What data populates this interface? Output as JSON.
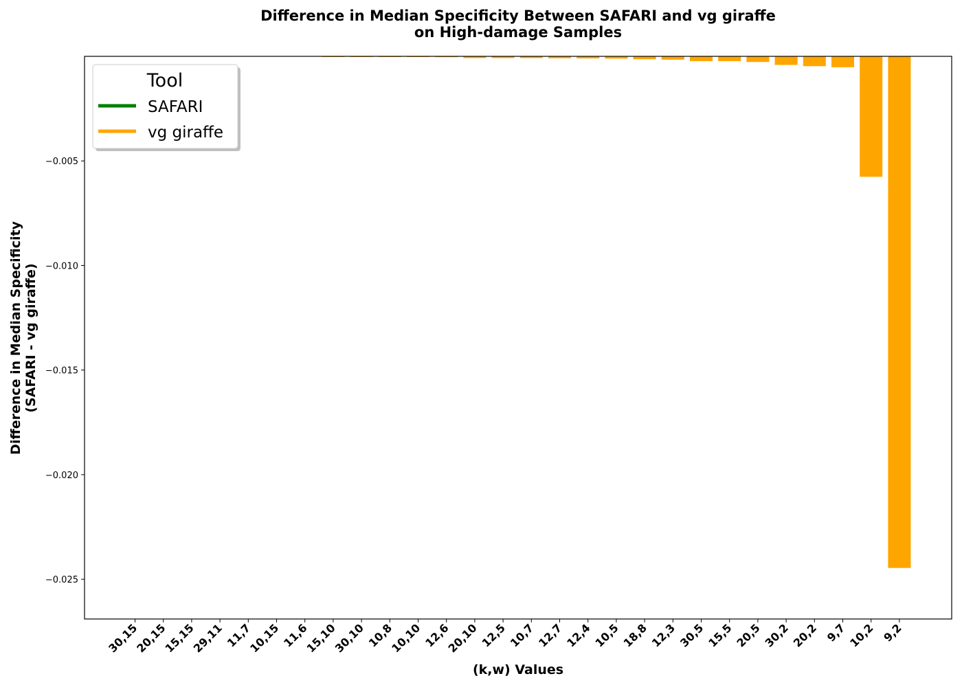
{
  "chart_data": {
    "type": "bar",
    "title": [
      "Difference in Median Specificity Between SAFARI and vg giraffe",
      "on High-damage Samples"
    ],
    "xlabel": "(k,w) Values",
    "ylabel": [
      "Difference in Median Specificity",
      "(SAFARI - vg giraffe)"
    ],
    "categories": [
      "30,15",
      "20,15",
      "15,15",
      "29,11",
      "11,7",
      "10,15",
      "11,6",
      "15,10",
      "30,10",
      "10,8",
      "10,10",
      "12,6",
      "20,10",
      "12,5",
      "10,7",
      "12,7",
      "12,4",
      "10,5",
      "18,8",
      "12,3",
      "30,5",
      "15,5",
      "20,5",
      "30,2",
      "20,2",
      "9,7",
      "10,2",
      "9,2"
    ],
    "values": [
      0,
      0,
      0,
      0,
      0,
      0,
      0,
      -2e-05,
      -3e-05,
      -3e-05,
      -3e-05,
      -4e-05,
      -8e-05,
      -8e-05,
      -8e-05,
      -9e-05,
      -0.0001,
      -0.00011,
      -0.00014,
      -0.00016,
      -0.00023,
      -0.00023,
      -0.00027,
      -0.00041,
      -0.00047,
      -0.00052,
      -0.00576,
      -0.02446
    ],
    "bar_color": "#ffa500",
    "yticks": [
      -0.025,
      -0.02,
      -0.015,
      -0.01,
      -0.005
    ],
    "ytick_labels": [
      "−0.025",
      "−0.020",
      "−0.015",
      "−0.010",
      "−0.005"
    ],
    "ylim": [
      -0.0269,
      0.0
    ],
    "grid": false,
    "legend": {
      "title": "Tool",
      "placement": "top-left",
      "entries": [
        {
          "label": "SAFARI",
          "color": "#008000"
        },
        {
          "label": "vg giraffe",
          "color": "#ffa500"
        }
      ]
    }
  }
}
